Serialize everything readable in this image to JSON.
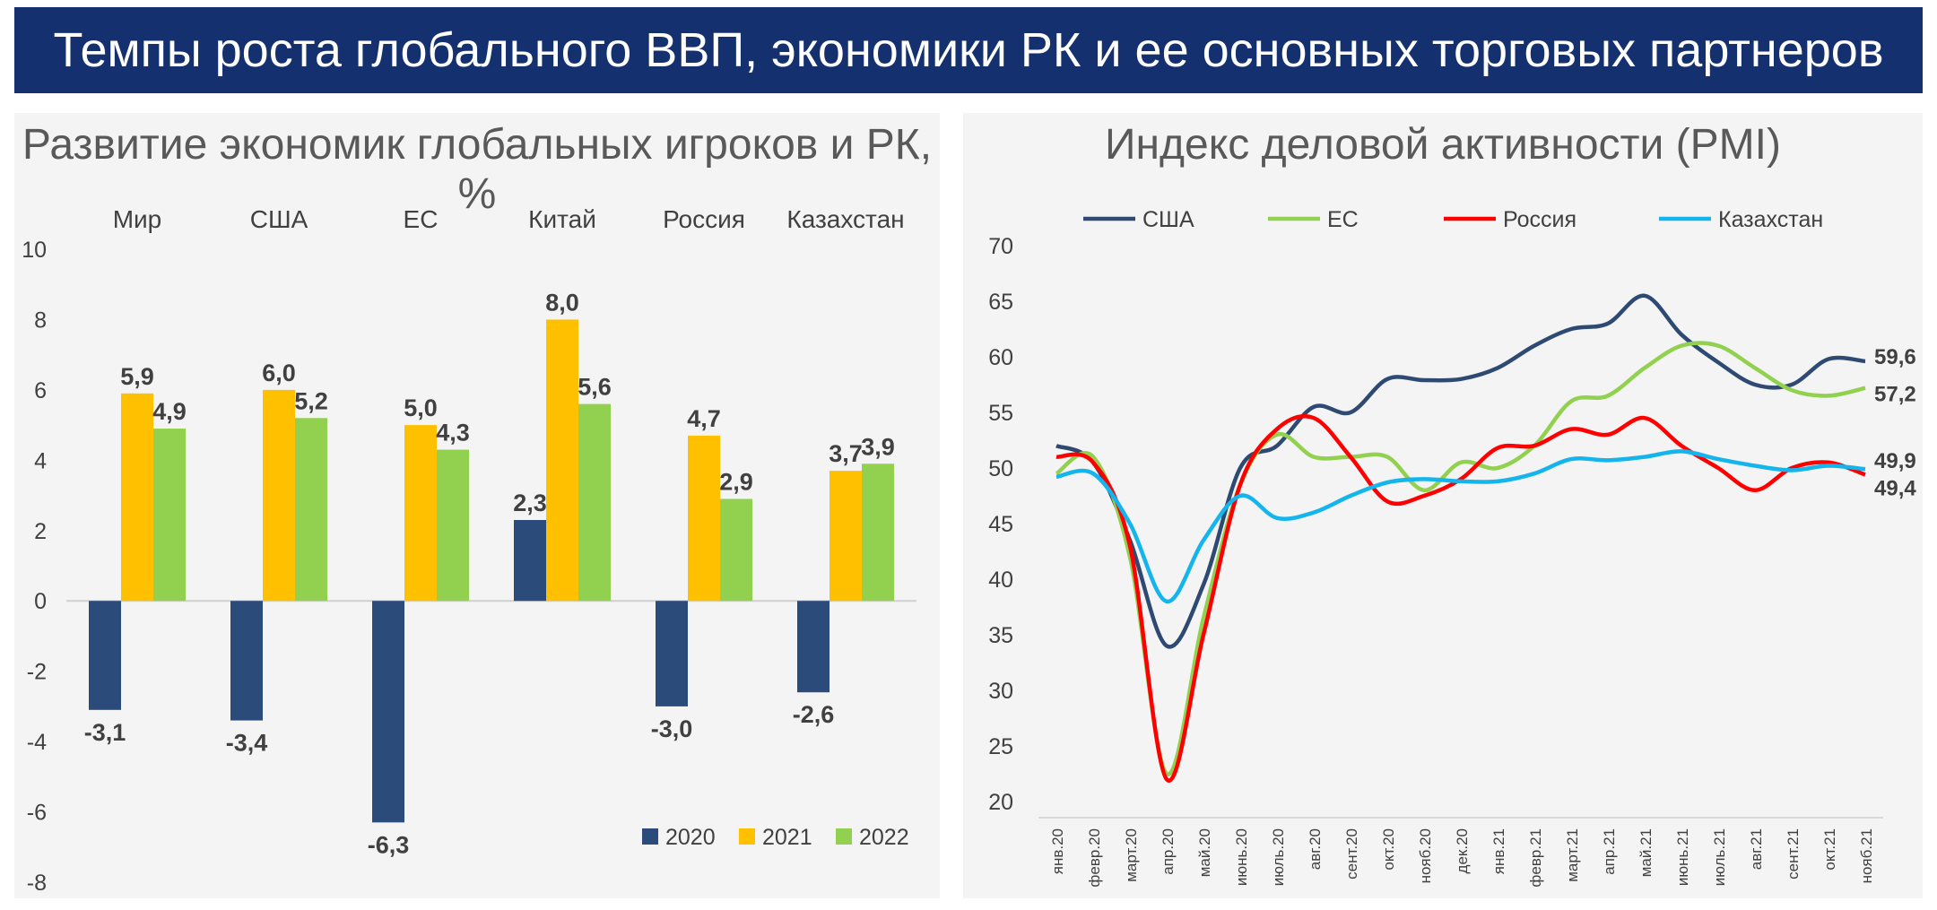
{
  "header": {
    "title": "Темпы роста глобального ВВП, экономики РК и ее основных торговых партнеров"
  },
  "colors": {
    "banner": "#14306e",
    "y2020": "#2b4b7a",
    "y2021": "#ffc000",
    "y2022": "#92d050",
    "usa": "#2e4a73",
    "eu": "#92d050",
    "russia": "#ff0000",
    "kazakhstan": "#14b4ec"
  },
  "chart_data": [
    {
      "type": "bar",
      "title": "Развитие экономик глобальных игроков и РК, %",
      "categories": [
        "Мир",
        "США",
        "ЕС",
        "Китай",
        "Россия",
        "Казахстан"
      ],
      "series": [
        {
          "name": "2020",
          "values": [
            -3.1,
            -3.4,
            -6.3,
            2.3,
            -3.0,
            -2.6
          ],
          "labels": [
            "-3,1",
            "-3,4",
            "-6,3",
            "2,3",
            "-3,0",
            "-2,6"
          ]
        },
        {
          "name": "2021",
          "values": [
            5.9,
            6.0,
            5.0,
            8.0,
            4.7,
            3.7
          ],
          "labels": [
            "5,9",
            "6,0",
            "5,0",
            "8,0",
            "4,7",
            "3,7"
          ]
        },
        {
          "name": "2022",
          "values": [
            4.9,
            5.2,
            4.3,
            5.6,
            2.9,
            3.9
          ],
          "labels": [
            "4,9",
            "5,2",
            "4,3",
            "5,6",
            "2,9",
            "3,9"
          ]
        }
      ],
      "ylim": [
        -8,
        10
      ],
      "yticks": [
        "10",
        "8",
        "6",
        "4",
        "2",
        "0",
        "-2",
        "-4",
        "-6",
        "-8"
      ],
      "legend_position": "bottom-right",
      "grid": false
    },
    {
      "type": "line",
      "title": "Индекс деловой активности (PMI)",
      "x": [
        "янв.20",
        "февр.20",
        "март.20",
        "апр.20",
        "май.20",
        "июнь.20",
        "июль.20",
        "авг.20",
        "сент.20",
        "окт.20",
        "нояб.20",
        "дек.20",
        "янв.21",
        "февр.21",
        "март.21",
        "апр.21",
        "май.21",
        "июнь.21",
        "июль.21",
        "авг.21",
        "сент.21",
        "окт.21",
        "нояб.21"
      ],
      "series": [
        {
          "name": "США",
          "values": [
            52.0,
            50.5,
            43.5,
            34.0,
            39.5,
            50.0,
            52.0,
            55.5,
            55.0,
            58.0,
            57.9,
            58.0,
            59.0,
            61.0,
            62.5,
            63.0,
            65.5,
            62.0,
            59.5,
            57.5,
            57.5,
            59.8,
            59.6
          ]
        },
        {
          "name": "ЕС",
          "values": [
            49.5,
            51.0,
            42.0,
            22.5,
            36.5,
            48.5,
            53.0,
            51.0,
            51.0,
            51.0,
            48.0,
            50.5,
            50.0,
            52.0,
            56.0,
            56.5,
            59.0,
            61.0,
            61.0,
            59.0,
            57.0,
            56.5,
            57.2
          ]
        },
        {
          "name": "Россия",
          "values": [
            51.0,
            50.5,
            43.0,
            22.0,
            35.0,
            48.5,
            53.5,
            54.5,
            51.0,
            47.0,
            47.5,
            49.0,
            51.8,
            52.0,
            53.5,
            53.0,
            54.5,
            52.0,
            50.0,
            48.0,
            50.0,
            50.5,
            49.4
          ]
        },
        {
          "name": "Казахстан",
          "values": [
            49.2,
            49.5,
            45.0,
            38.0,
            43.5,
            47.5,
            45.5,
            46.0,
            47.5,
            48.7,
            49.0,
            48.8,
            48.8,
            49.5,
            50.8,
            50.7,
            51.0,
            51.5,
            50.8,
            50.2,
            49.8,
            50.2,
            49.9
          ]
        }
      ],
      "end_labels": [
        "59,6",
        "57,2",
        "49,4",
        "49,9"
      ],
      "ylim": [
        20,
        70
      ],
      "yticks": [
        "70",
        "65",
        "60",
        "55",
        "50",
        "45",
        "40",
        "35",
        "30",
        "25",
        "20"
      ],
      "legend_position": "top",
      "grid": false
    }
  ]
}
